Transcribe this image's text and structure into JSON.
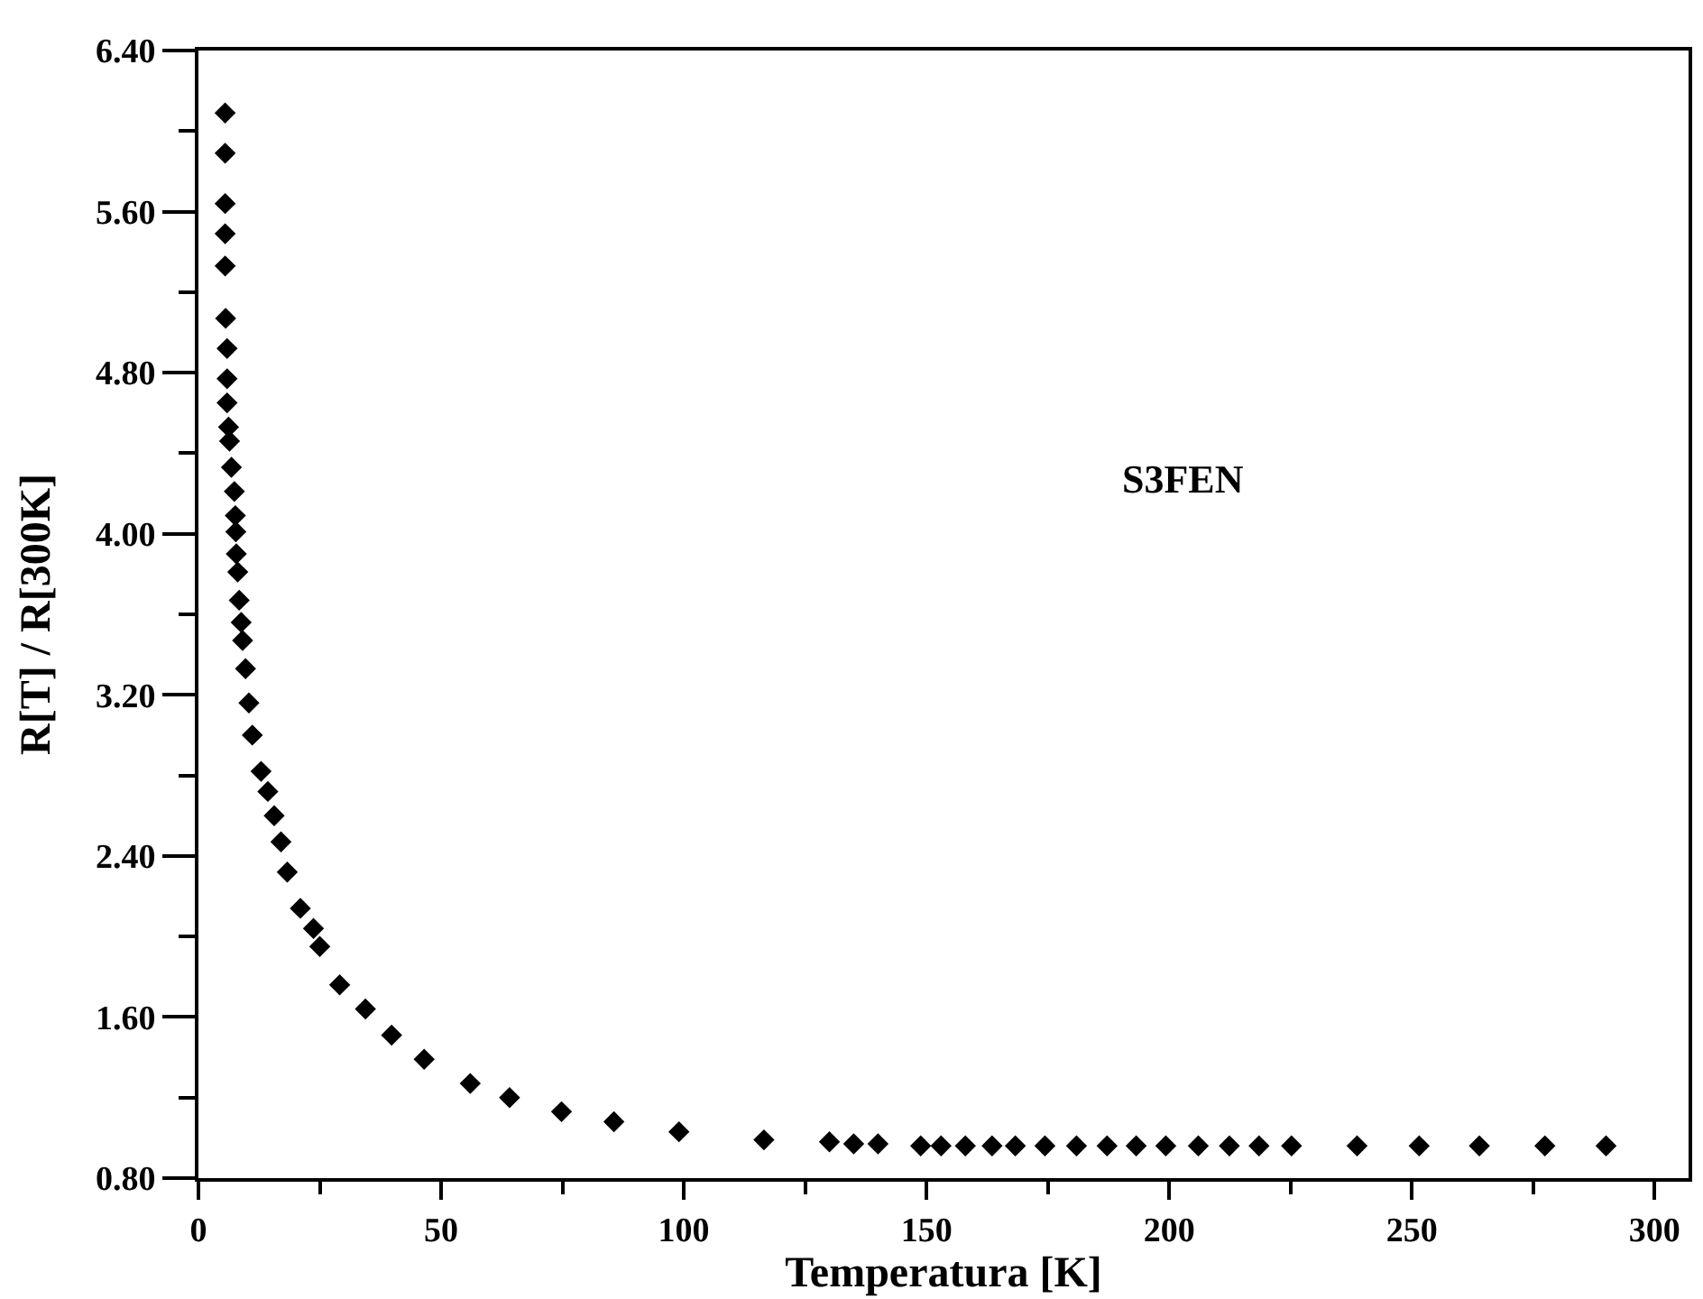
{
  "chart_data": {
    "type": "scatter",
    "xlabel": "Temperatura [K]",
    "ylabel": "R[T] / R[300K]",
    "annotations": [
      "S3FEN"
    ],
    "marker": "diamond",
    "grid": false,
    "series": [
      {
        "color": "#000000",
        "x": [
          5.5,
          5.5,
          5.5,
          5.5,
          5.5,
          5.6,
          5.9,
          5.9,
          5.9,
          6.2,
          6.4,
          6.8,
          7.4,
          7.6,
          7.7,
          7.8,
          8.1,
          8.4,
          8.8,
          9.1,
          9.7,
          10.4,
          11.1,
          12.9,
          14.3,
          15.6,
          17.0,
          18.3,
          21.0,
          23.7,
          25.0,
          29.1,
          34.4,
          39.8,
          46.5,
          56.0,
          64.1,
          74.8,
          85.6,
          99.0,
          116.5,
          130,
          135,
          140,
          148.8,
          153,
          158,
          163.5,
          168.3,
          174.4,
          180.9,
          187.2,
          193.2,
          199.3,
          206,
          212.4,
          218.5,
          225.2,
          238.7,
          251.5,
          263.9,
          277.4,
          290
        ],
        "values": [
          6.09,
          5.89,
          5.64,
          5.49,
          5.33,
          5.07,
          4.92,
          4.77,
          4.65,
          4.53,
          4.46,
          4.33,
          4.21,
          4.09,
          4.01,
          3.9,
          3.81,
          3.67,
          3.56,
          3.47,
          3.33,
          3.16,
          3.0,
          2.82,
          2.72,
          2.6,
          2.47,
          2.32,
          2.14,
          2.04,
          1.95,
          1.76,
          1.64,
          1.51,
          1.39,
          1.27,
          1.2,
          1.13,
          1.08,
          1.03,
          0.99,
          0.98,
          0.97,
          0.97,
          0.96,
          0.96,
          0.96,
          0.96,
          0.96,
          0.96,
          0.96,
          0.96,
          0.96,
          0.96,
          0.96,
          0.96,
          0.96,
          0.96,
          0.96,
          0.96,
          0.96,
          0.96,
          0.96
        ]
      }
    ],
    "xlim": [
      0,
      307
    ],
    "xticks": [
      0,
      {
        "value": 25,
        "label": null
      },
      50,
      {
        "value": 75,
        "label": null
      },
      100,
      {
        "value": 125,
        "label": null
      },
      150,
      {
        "value": 175,
        "label": null
      },
      200,
      {
        "value": 225,
        "label": null
      },
      250,
      {
        "value": 275,
        "label": null
      },
      300
    ],
    "ylim": [
      0.8,
      6.4
    ],
    "yticks": [
      {
        "value": 0.8,
        "label": "0.80"
      },
      {
        "value": 1.2,
        "label": null
      },
      {
        "value": 1.6,
        "label": "1.60"
      },
      {
        "value": 2.0,
        "label": null
      },
      {
        "value": 2.4,
        "label": "2.40"
      },
      {
        "value": 2.8,
        "label": null
      },
      {
        "value": 3.2,
        "label": "3.20"
      },
      {
        "value": 3.6,
        "label": null
      },
      {
        "value": 4.0,
        "label": "4.00"
      },
      {
        "value": 4.4,
        "label": null
      },
      {
        "value": 4.8,
        "label": "4.80"
      },
      {
        "value": 5.2,
        "label": null
      },
      {
        "value": 5.6,
        "label": "5.60"
      },
      {
        "value": 6.0,
        "label": null
      },
      {
        "value": 6.4,
        "label": "6.40"
      }
    ]
  }
}
